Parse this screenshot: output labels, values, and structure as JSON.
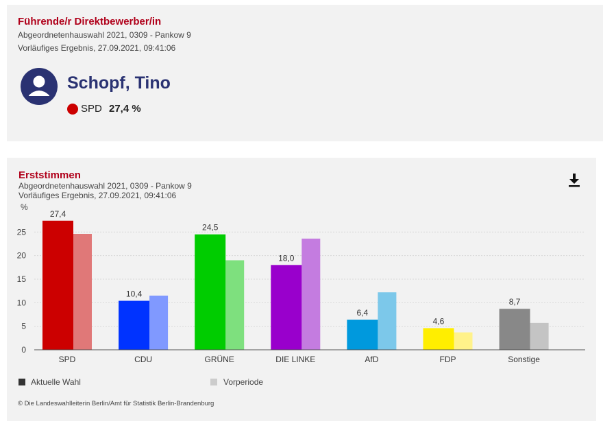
{
  "top": {
    "title": "Führende/r Direktbewerber/in",
    "line1": "Abgeordnetenhauswahl 2021, 0309 - Pankow 9",
    "line2": "Vorläufiges Ergebnis, 27.09.2021, 09:41:06",
    "candidate": "Schopf, Tino",
    "party": "SPD",
    "percent": "27,4 %",
    "party_color": "#cc0000",
    "avatar_color": "#2a3272"
  },
  "chart_panel": {
    "title": "Erststimmen",
    "line1": "Abgeordnetenhauswahl 2021, 0309 - Pankow 9",
    "line2": "Vorläufiges Ergebnis, 27.09.2021, 09:41:06",
    "download_icon": "download-icon",
    "footer": "© Die Landeswahlleiterin Berlin/Amt für Statistik Berlin-Brandenburg"
  },
  "chart_data": {
    "type": "bar",
    "ylabel": "%",
    "ylim": [
      0,
      28
    ],
    "yticks": [
      0,
      5,
      10,
      15,
      20,
      25
    ],
    "grid": true,
    "categories": [
      "SPD",
      "CDU",
      "GRÜNE",
      "DIE LINKE",
      "AfD",
      "FDP",
      "Sonstige"
    ],
    "series": [
      {
        "name": "Aktuelle Wahl",
        "values": [
          27.4,
          10.4,
          24.5,
          18.0,
          6.4,
          4.6,
          8.7
        ],
        "labels": [
          "27,4",
          "10,4",
          "24,5",
          "18,0",
          "6,4",
          "4,6",
          "8,7"
        ],
        "colors": [
          "#cc0000",
          "#0033ff",
          "#00cc00",
          "#9900cc",
          "#0099dd",
          "#ffee00",
          "#888888"
        ]
      },
      {
        "name": "Vorperiode",
        "values": [
          24.6,
          11.5,
          19.0,
          23.6,
          12.2,
          3.7,
          5.7
        ],
        "colors": [
          "#e07878",
          "#8099ff",
          "#7ee07e",
          "#c47ce0",
          "#7cc8ea",
          "#fff28a",
          "#c4c4c4"
        ]
      }
    ],
    "legend": {
      "placement": "bottom-left",
      "colors": [
        "#333333",
        "#cccccc"
      ]
    }
  }
}
